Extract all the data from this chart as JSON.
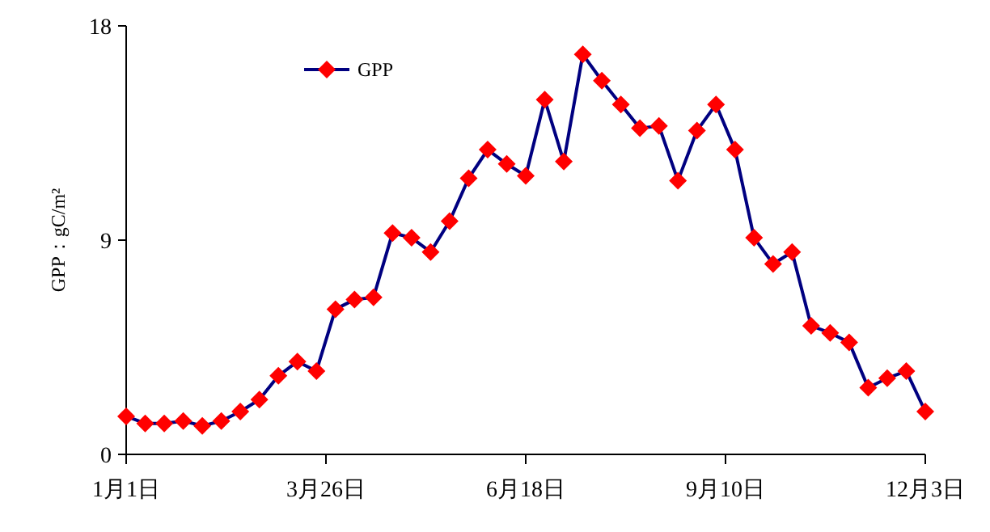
{
  "chart_data": {
    "type": "line",
    "ylabel": "GPP：gC/m²",
    "x": [
      "--01-01",
      "--01-09",
      "--01-17",
      "--01-25",
      "--02-02",
      "--02-10",
      "--02-18",
      "--02-26",
      "--03-06",
      "--03-14",
      "--03-22",
      "--03-30",
      "--04-07",
      "--04-15",
      "--04-23",
      "--05-01",
      "--05-09",
      "--05-17",
      "--05-25",
      "--06-02",
      "--06-10",
      "--06-18",
      "--06-26",
      "--07-04",
      "--07-12",
      "--07-20",
      "--07-28",
      "--08-05",
      "--08-13",
      "--08-21",
      "--08-29",
      "--09-06",
      "--09-14",
      "--09-22",
      "--09-30",
      "--10-08",
      "--10-16",
      "--10-24",
      "--11-01",
      "--11-09",
      "--11-17",
      "--11-25",
      "--12-03"
    ],
    "series": [
      {
        "name": "GPP",
        "color": "#000080",
        "colors": [
          "#ff0000",
          "#ff0000",
          "#ff0000",
          "#ff0000",
          "#ff0000",
          "#ff0000",
          "#ff0000",
          "#ff0000",
          "#ff0000",
          "#ff0000",
          "#ff0000",
          "#ff0000",
          "#ff0000",
          "#ff0000",
          "#ff0000",
          "#ff0000",
          "#ff0000",
          "#ff0000",
          "#ff0000",
          "#ff0000",
          "#ff0000",
          "#ff0000",
          "#ff0000",
          "#ff0000",
          "#ff0000",
          "#ff0000",
          "#ff0000",
          "#ff0000",
          "#ff0000",
          "#ff0000",
          "#ff0000",
          "#ff0000",
          "#ff0000",
          "#ff0000",
          "#ff0000",
          "#ff0000",
          "#ff0000",
          "#ff0000",
          "#ff0000",
          "#ff0000",
          "#ff0000",
          "#ff0000",
          "#ff0000"
        ],
        "values": [
          1.6,
          1.3,
          1.3,
          1.4,
          1.2,
          1.4,
          1.8,
          2.3,
          3.3,
          3.9,
          3.5,
          6.1,
          6.5,
          6.6,
          9.3,
          9.1,
          8.5,
          9.8,
          11.6,
          12.8,
          12.2,
          11.7,
          14.9,
          12.3,
          16.8,
          15.7,
          14.7,
          13.7,
          13.8,
          11.5,
          13.6,
          14.7,
          12.8,
          9.1,
          8.0,
          8.5,
          5.4,
          5.1,
          4.7,
          2.8,
          3.2,
          3.5,
          1.8
        ]
      }
    ],
    "xlim": [
      "--01-01",
      "--12-03"
    ],
    "xticks": [
      {
        "value": "--01-01",
        "label": "1月1日"
      },
      {
        "value": "--03-26",
        "label": "3月26日"
      },
      {
        "value": "--06-18",
        "label": "6月18日"
      },
      {
        "value": "--09-10",
        "label": "9月10日"
      },
      {
        "value": "--12-03",
        "label": "12月3日"
      }
    ],
    "ylim": [
      0,
      18
    ],
    "yticks": [
      0,
      9,
      18
    ],
    "marker": "diamond",
    "line_style": "solid",
    "grid": false,
    "legend": "top left"
  }
}
